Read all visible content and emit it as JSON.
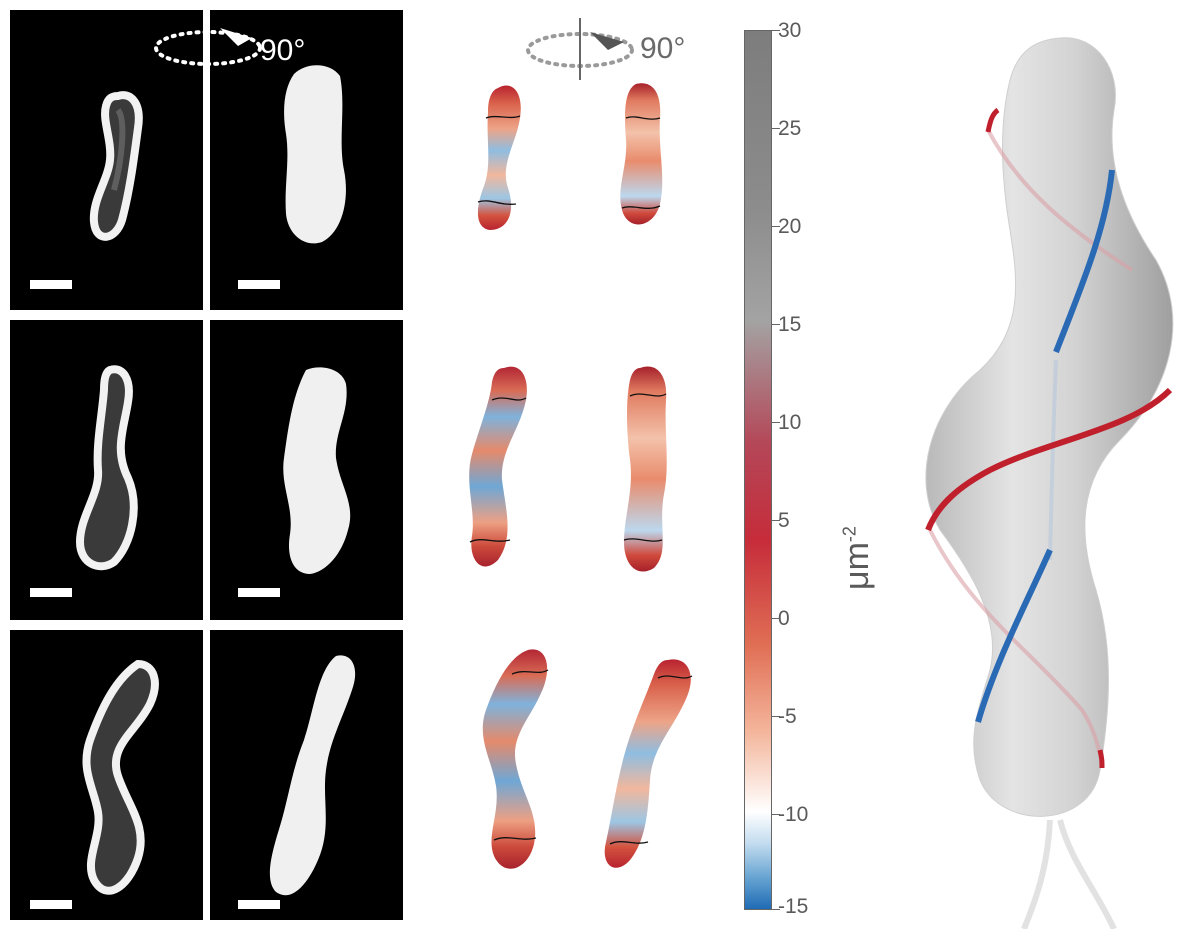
{
  "rotation_labels": {
    "left": "90°",
    "middle": "90°"
  },
  "colorbar": {
    "ticks": [
      "30",
      "25",
      "20",
      "15",
      "10",
      "5",
      "0",
      "-5",
      "-10",
      "-15"
    ],
    "unit_base": "μm",
    "unit_exp": "-2"
  },
  "colors": {
    "positive_curvature": "#c62c3a",
    "negative_curvature": "#1f6bb5",
    "zero": "#ffffff",
    "high": "#7d7d7d",
    "model_helix_red": "#c0202c",
    "model_helix_blue": "#2a6ab4",
    "model_body": "#d7d7d7"
  }
}
